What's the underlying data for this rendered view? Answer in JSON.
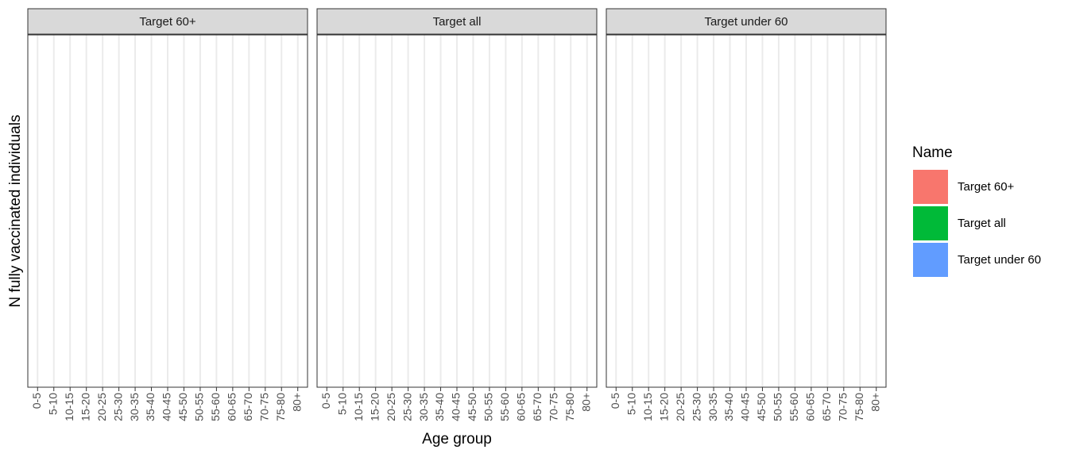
{
  "chart_data": {
    "type": "bar",
    "xlabel": "Age group",
    "ylabel": "N fully vaccinated individuals",
    "categories": [
      "0-5",
      "5-10",
      "10-15",
      "15-20",
      "20-25",
      "25-30",
      "30-35",
      "35-40",
      "40-45",
      "45-50",
      "50-55",
      "55-60",
      "60-65",
      "65-70",
      "70-75",
      "75-80",
      "80+"
    ],
    "facets": [
      "Target 60+",
      "Target all",
      "Target under 60"
    ],
    "grid": true,
    "legend": {
      "title": "Name",
      "position": "right"
    },
    "series": [
      {
        "name": "Target 60+",
        "color": "#f8766d"
      },
      {
        "name": "Target all",
        "color": "#00ba38"
      },
      {
        "name": "Target under 60",
        "color": "#619cff"
      }
    ]
  }
}
